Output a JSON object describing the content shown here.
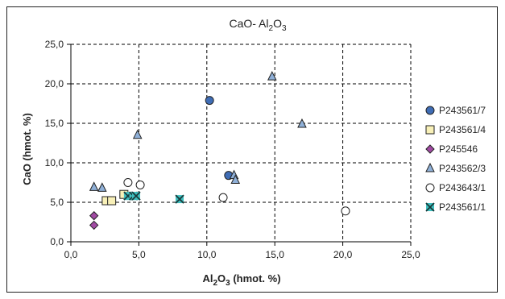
{
  "chart_data": {
    "type": "scatter",
    "title": "CaO- Al",
    "title_sub": "2",
    "title_tail": "O",
    "title_sub2": "3",
    "xlabel_main": "Al",
    "xlabel_sub": "2",
    "xlabel_tail": "O",
    "xlabel_sub2": "3",
    "xlabel_rest": " (hmot. %)",
    "ylabel": "CaO (hmot. %)",
    "xlim": [
      0,
      25
    ],
    "ylim": [
      0,
      25
    ],
    "x_ticks": [
      "0,0",
      "5,0",
      "10,0",
      "15,0",
      "20,0",
      "25,0"
    ],
    "y_ticks": [
      "0,0",
      "5,0",
      "10,0",
      "15,0",
      "20,0",
      "25,0"
    ],
    "grid": true,
    "legend_position": "right",
    "series": [
      {
        "name": "P243561/7",
        "marker": "circle",
        "color": "#3f6db5",
        "points": [
          [
            10.2,
            17.9
          ],
          [
            11.6,
            8.4
          ]
        ]
      },
      {
        "name": "P243561/4",
        "marker": "square",
        "color": "#f8f0b8",
        "points": [
          [
            2.6,
            5.2
          ],
          [
            3.0,
            5.2
          ],
          [
            3.9,
            6.0
          ]
        ]
      },
      {
        "name": "P245546",
        "marker": "diamond",
        "color": "#a14aa3",
        "points": [
          [
            1.7,
            3.3
          ],
          [
            1.7,
            2.1
          ]
        ]
      },
      {
        "name": "P243562/3",
        "marker": "triangle",
        "color": "#8fb0d8",
        "points": [
          [
            1.7,
            6.9
          ],
          [
            2.3,
            6.8
          ],
          [
            4.9,
            13.5
          ],
          [
            12.0,
            8.4
          ],
          [
            12.1,
            7.8
          ],
          [
            14.8,
            20.9
          ],
          [
            17.0,
            14.9
          ]
        ]
      },
      {
        "name": "P243643/1",
        "marker": "open-circle",
        "color": "#ffffff",
        "points": [
          [
            4.2,
            7.5
          ],
          [
            5.1,
            7.2
          ],
          [
            11.2,
            5.6
          ],
          [
            20.2,
            3.9
          ]
        ]
      },
      {
        "name": "P243561/1",
        "marker": "x-square",
        "color": "#3fbfbf",
        "points": [
          [
            4.2,
            5.8
          ],
          [
            4.6,
            5.8
          ],
          [
            4.8,
            5.8
          ],
          [
            8.0,
            5.4
          ]
        ]
      }
    ]
  }
}
